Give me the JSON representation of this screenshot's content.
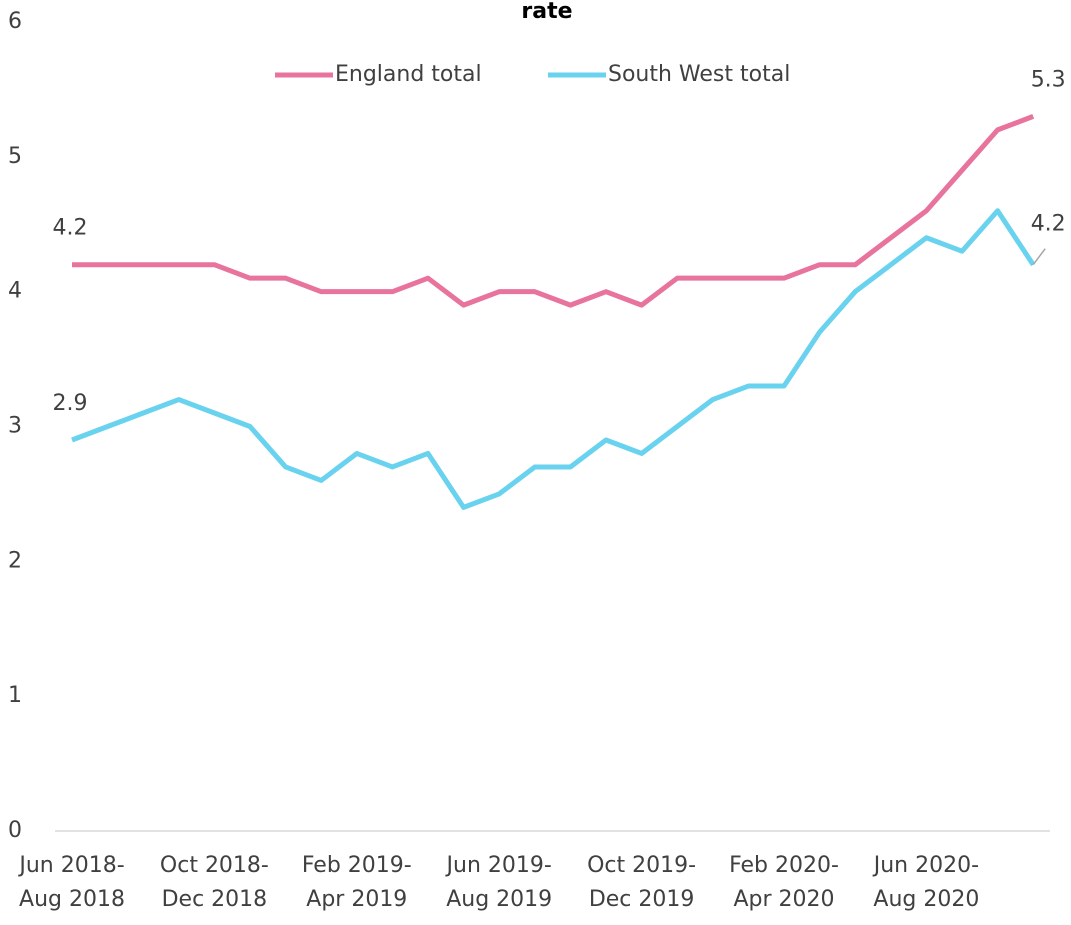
{
  "chart_data": {
    "type": "line",
    "title": "rate",
    "categories": [
      "Jun 2018-\nAug 2018",
      null,
      null,
      null,
      "Oct 2018-\nDec 2018",
      null,
      null,
      null,
      "Feb 2019-\nApr 2019",
      null,
      null,
      null,
      "Jun 2019-\nAug 2019",
      null,
      null,
      null,
      "Oct 2019-\nDec 2019",
      null,
      null,
      null,
      "Feb 2020-\nApr 2020",
      null,
      null,
      null,
      "Jun 2020-\nAug 2020",
      null,
      null,
      null
    ],
    "series": [
      {
        "name": "England total",
        "color": "#e8739c",
        "values": [
          4.2,
          4.2,
          4.2,
          4.2,
          4.2,
          4.1,
          4.1,
          4.0,
          4.0,
          4.0,
          4.1,
          3.9,
          4.0,
          4.0,
          3.9,
          4.0,
          3.9,
          4.1,
          4.1,
          4.1,
          4.1,
          4.2,
          4.2,
          4.4,
          4.6,
          4.9,
          5.2,
          5.3
        ],
        "value_labels": [
          "4.2",
          null,
          null,
          null,
          null,
          null,
          null,
          null,
          null,
          null,
          null,
          null,
          null,
          null,
          null,
          null,
          null,
          null,
          null,
          null,
          null,
          null,
          null,
          null,
          null,
          null,
          null,
          "5.3"
        ]
      },
      {
        "name": "South West total",
        "color": "#69d2ee",
        "values": [
          2.9,
          3.0,
          3.1,
          3.2,
          3.1,
          3.0,
          2.7,
          2.6,
          2.8,
          2.7,
          2.8,
          2.4,
          2.5,
          2.7,
          2.7,
          2.9,
          2.8,
          3.0,
          3.2,
          3.3,
          3.3,
          3.7,
          4.0,
          4.2,
          4.4,
          4.3,
          4.6,
          4.2
        ],
        "value_labels": [
          "2.9",
          null,
          null,
          null,
          null,
          null,
          null,
          null,
          null,
          null,
          null,
          null,
          null,
          null,
          null,
          null,
          null,
          null,
          null,
          null,
          null,
          null,
          null,
          null,
          null,
          null,
          null,
          "4.2"
        ]
      }
    ],
    "ylim": [
      0,
      6
    ],
    "yticks": [
      0,
      1,
      2,
      3,
      4,
      5,
      6
    ],
    "legend": "top"
  }
}
